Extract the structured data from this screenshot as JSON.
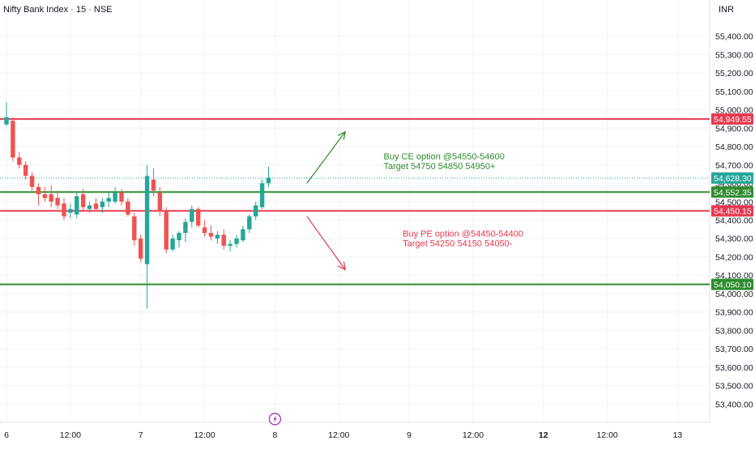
{
  "header": {
    "title": "Nifty Bank Index · 15 · NSE",
    "currency": "INR"
  },
  "colors": {
    "up": "#26a69a",
    "down": "#ef5350",
    "resistance": "#e53950",
    "support": "#2e8b2e",
    "buy_note": "#2e8b2e",
    "sell_note": "#e53950",
    "last_price_line": "#26a69a",
    "grid": "#f0f3fa",
    "axis_text": "#131722"
  },
  "chart_data": {
    "type": "candlestick",
    "title": "Nifty Bank Index · 15 · NSE",
    "y_axis": {
      "min": 53300,
      "max": 55500,
      "position": "right",
      "ticks": [
        53400,
        53500,
        53600,
        53700,
        53800,
        53900,
        54000,
        54100,
        54200,
        54300,
        54400,
        54500,
        54600,
        54700,
        54800,
        54900,
        55000,
        55100,
        55200,
        55300,
        55400
      ],
      "tick_labels": [
        "53,400.00",
        "53,500.00",
        "53,600.00",
        "53,700.00",
        "53,800.00",
        "53,900.00",
        "54,000.00",
        "54,100.00",
        "54,200.00",
        "54,300.00",
        "54,400.00",
        "54,500.00",
        "54,600.00",
        "54,700.00",
        "54,800.00",
        "54,900.00",
        "55,000.00",
        "55,100.00",
        "55,200.00",
        "55,300.00",
        "55,400.00"
      ]
    },
    "x_axis": {
      "min": 0,
      "max": 109,
      "ticks": [
        {
          "x": 0,
          "label": "6",
          "bold": false
        },
        {
          "x": 10,
          "label": "12:00",
          "bold": false
        },
        {
          "x": 21,
          "label": "7",
          "bold": false
        },
        {
          "x": 31,
          "label": "12:00",
          "bold": false
        },
        {
          "x": 42,
          "label": "8",
          "bold": false
        },
        {
          "x": 52,
          "label": "12:00",
          "bold": false
        },
        {
          "x": 63,
          "label": "9",
          "bold": false
        },
        {
          "x": 73,
          "label": "12:00",
          "bold": false
        },
        {
          "x": 84,
          "label": "12",
          "bold": true
        },
        {
          "x": 94,
          "label": "12:00",
          "bold": false
        },
        {
          "x": 105,
          "label": "13",
          "bold": false
        }
      ]
    },
    "candles": [
      {
        "x": 0,
        "o": 54920,
        "h": 55040,
        "l": 54910,
        "c": 54960
      },
      {
        "x": 1,
        "o": 54940,
        "h": 54960,
        "l": 54720,
        "c": 54740
      },
      {
        "x": 2,
        "o": 54740,
        "h": 54770,
        "l": 54680,
        "c": 54700
      },
      {
        "x": 3,
        "o": 54700,
        "h": 54720,
        "l": 54620,
        "c": 54640
      },
      {
        "x": 4,
        "o": 54640,
        "h": 54660,
        "l": 54560,
        "c": 54580
      },
      {
        "x": 5,
        "o": 54580,
        "h": 54600,
        "l": 54480,
        "c": 54540
      },
      {
        "x": 6,
        "o": 54540,
        "h": 54580,
        "l": 54500,
        "c": 54520
      },
      {
        "x": 7,
        "o": 54540,
        "h": 54590,
        "l": 54470,
        "c": 54500
      },
      {
        "x": 8,
        "o": 54520,
        "h": 54560,
        "l": 54460,
        "c": 54480
      },
      {
        "x": 9,
        "o": 54490,
        "h": 54520,
        "l": 54400,
        "c": 54420
      },
      {
        "x": 10,
        "o": 54440,
        "h": 54490,
        "l": 54410,
        "c": 54460
      },
      {
        "x": 11,
        "o": 54430,
        "h": 54550,
        "l": 54410,
        "c": 54530
      },
      {
        "x": 12,
        "o": 54540,
        "h": 54570,
        "l": 54450,
        "c": 54470
      },
      {
        "x": 13,
        "o": 54460,
        "h": 54500,
        "l": 54440,
        "c": 54480
      },
      {
        "x": 14,
        "o": 54490,
        "h": 54520,
        "l": 54450,
        "c": 54460
      },
      {
        "x": 15,
        "o": 54470,
        "h": 54520,
        "l": 54440,
        "c": 54500
      },
      {
        "x": 16,
        "o": 54500,
        "h": 54550,
        "l": 54470,
        "c": 54520
      },
      {
        "x": 17,
        "o": 54500,
        "h": 54580,
        "l": 54490,
        "c": 54550
      },
      {
        "x": 18,
        "o": 54550,
        "h": 54570,
        "l": 54480,
        "c": 54500
      },
      {
        "x": 19,
        "o": 54500,
        "h": 54520,
        "l": 54420,
        "c": 54430
      },
      {
        "x": 20,
        "o": 54420,
        "h": 54440,
        "l": 54260,
        "c": 54290
      },
      {
        "x": 21,
        "o": 54300,
        "h": 54320,
        "l": 54170,
        "c": 54190
      },
      {
        "x": 22,
        "o": 54160,
        "h": 54700,
        "l": 53920,
        "c": 54640
      },
      {
        "x": 23,
        "o": 54620,
        "h": 54680,
        "l": 54530,
        "c": 54560
      },
      {
        "x": 24,
        "o": 54550,
        "h": 54580,
        "l": 54420,
        "c": 54450
      },
      {
        "x": 25,
        "o": 54450,
        "h": 54470,
        "l": 54220,
        "c": 54240
      },
      {
        "x": 26,
        "o": 54240,
        "h": 54320,
        "l": 54230,
        "c": 54300
      },
      {
        "x": 27,
        "o": 54290,
        "h": 54340,
        "l": 54250,
        "c": 54330
      },
      {
        "x": 28,
        "o": 54330,
        "h": 54410,
        "l": 54280,
        "c": 54390
      },
      {
        "x": 29,
        "o": 54390,
        "h": 54480,
        "l": 54360,
        "c": 54460
      },
      {
        "x": 30,
        "o": 54460,
        "h": 54470,
        "l": 54360,
        "c": 54370
      },
      {
        "x": 31,
        "o": 54360,
        "h": 54400,
        "l": 54310,
        "c": 54330
      },
      {
        "x": 32,
        "o": 54330,
        "h": 54370,
        "l": 54290,
        "c": 54310
      },
      {
        "x": 33,
        "o": 54300,
        "h": 54340,
        "l": 54270,
        "c": 54320
      },
      {
        "x": 34,
        "o": 54320,
        "h": 54350,
        "l": 54240,
        "c": 54260
      },
      {
        "x": 35,
        "o": 54260,
        "h": 54290,
        "l": 54230,
        "c": 54270
      },
      {
        "x": 36,
        "o": 54270,
        "h": 54320,
        "l": 54250,
        "c": 54300
      },
      {
        "x": 37,
        "o": 54290,
        "h": 54370,
        "l": 54280,
        "c": 54350
      },
      {
        "x": 38,
        "o": 54350,
        "h": 54430,
        "l": 54330,
        "c": 54420
      },
      {
        "x": 39,
        "o": 54420,
        "h": 54500,
        "l": 54400,
        "c": 54480
      },
      {
        "x": 40,
        "o": 54470,
        "h": 54620,
        "l": 54460,
        "c": 54600
      },
      {
        "x": 41,
        "o": 54600,
        "h": 54690,
        "l": 54580,
        "c": 54630
      }
    ],
    "levels": [
      {
        "value": 54949.55,
        "label": "54,949.55",
        "kind": "resistance"
      },
      {
        "value": 54552.35,
        "label": "54,552.35",
        "kind": "support"
      },
      {
        "value": 54450.15,
        "label": "54,450.15",
        "kind": "resistance"
      },
      {
        "value": 54050.1,
        "label": "54,050.10",
        "kind": "support"
      }
    ],
    "last_price": {
      "value": 54628.3,
      "label": "54,628.30"
    },
    "annotations": [
      {
        "kind": "buy",
        "lines": [
          "Buy CE option @54550-54600",
          "Target 54750 54850 54950+"
        ],
        "text_x": 59,
        "text_y": 54730,
        "arrow": {
          "x1": 47,
          "y1": 54600,
          "x2": 53,
          "y2": 54880
        }
      },
      {
        "kind": "sell",
        "lines": [
          "Buy PE option @54450-54400",
          "Target 54250 54150 54050-"
        ],
        "text_x": 62,
        "text_y": 54310,
        "arrow": {
          "x1": 47,
          "y1": 54420,
          "x2": 53,
          "y2": 54130
        }
      }
    ],
    "event_marker": {
      "x": 42,
      "icon": "lightning-icon"
    }
  }
}
